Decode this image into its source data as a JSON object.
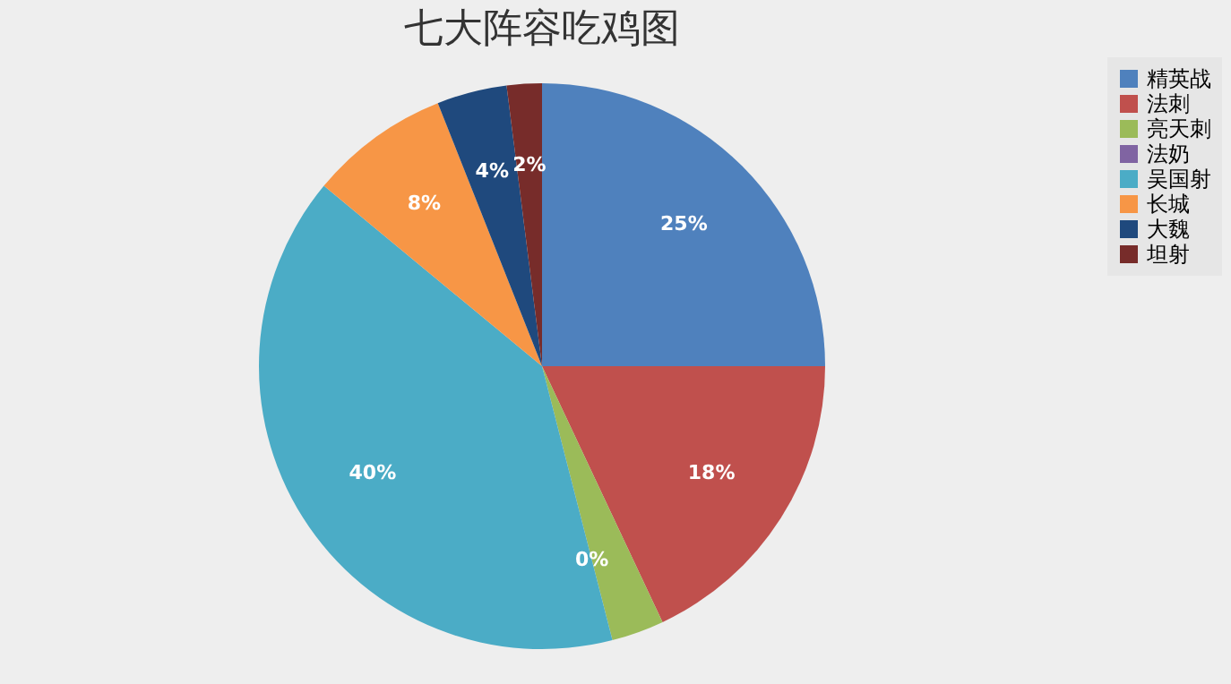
{
  "chart_data": {
    "type": "pie",
    "title": "七大阵容吃鸡图",
    "categories": [
      "精英战",
      "法刺",
      "亮天刺",
      "法奶",
      "吴国射",
      "长城",
      "大魏",
      "坦射"
    ],
    "values": [
      25,
      18,
      3,
      0,
      40,
      8,
      4,
      2
    ],
    "value_labels": [
      "25%",
      "18%",
      null,
      "0%",
      "40%",
      "8%",
      "4%",
      "2%"
    ],
    "colors": [
      "#4f81bd",
      "#c0504d",
      "#9bbb59",
      "#8064a2",
      "#4bacc6",
      "#f79646",
      "#1f497d",
      "#772c2a"
    ],
    "legend": "right"
  }
}
